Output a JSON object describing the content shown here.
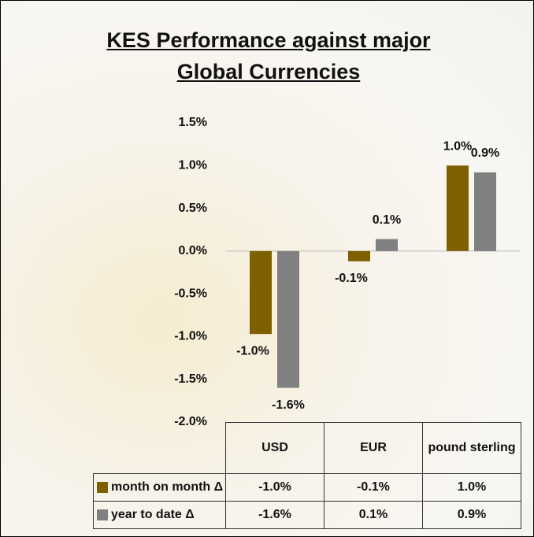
{
  "chart_data": {
    "type": "bar",
    "title": "KES Performance against major Global Currencies",
    "categories": [
      "USD",
      "EUR",
      "pound sterling"
    ],
    "series": [
      {
        "name": "month on month Δ",
        "color": "#7f6000",
        "values": [
          -0.97,
          -0.12,
          1.0
        ],
        "value_labels": [
          "-1.0%",
          "-0.1%",
          "1.0%"
        ]
      },
      {
        "name": "year to date Δ",
        "color": "#808080",
        "values": [
          -1.6,
          0.14,
          0.92
        ],
        "value_labels": [
          "-1.6%",
          "0.1%",
          "0.9%"
        ]
      }
    ],
    "ylim": [
      -2.0,
      1.5
    ],
    "yticks": [
      {
        "value": 1.5,
        "label": "1.5%"
      },
      {
        "value": 1.0,
        "label": "1.0%"
      },
      {
        "value": 0.5,
        "label": "0.5%"
      },
      {
        "value": 0.0,
        "label": "0.0%"
      },
      {
        "value": -0.5,
        "label": "-0.5%"
      },
      {
        "value": -1.0,
        "label": "-1.0%"
      },
      {
        "value": -1.5,
        "label": "-1.5%"
      },
      {
        "value": -2.0,
        "label": "-2.0%"
      }
    ],
    "grid": false,
    "data_table": true
  }
}
